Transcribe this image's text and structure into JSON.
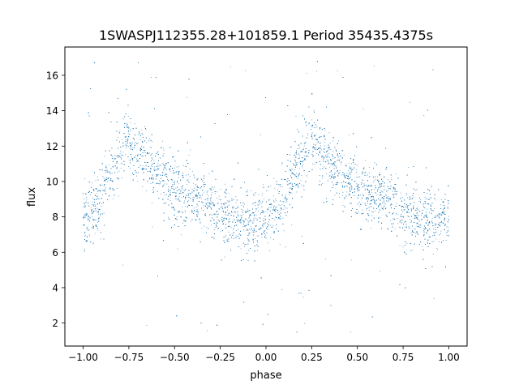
{
  "chart_data": {
    "type": "scatter",
    "title": "1SWASPJ112355.28+101859.1 Period 35435.4375s",
    "xlabel": "phase",
    "ylabel": "flux",
    "xlim": [
      -1.1,
      1.1
    ],
    "ylim": [
      0.7,
      17.6
    ],
    "xticks": [
      -1.0,
      -0.75,
      -0.5,
      -0.25,
      0.0,
      0.25,
      0.5,
      0.75,
      1.0
    ],
    "xtick_labels": [
      "−1.00",
      "−0.75",
      "−0.50",
      "−0.25",
      "0.00",
      "0.25",
      "0.50",
      "0.75",
      "1.00"
    ],
    "yticks": [
      2,
      4,
      6,
      8,
      10,
      12,
      14,
      16
    ],
    "ytick_labels": [
      "2",
      "4",
      "6",
      "8",
      "10",
      "12",
      "14",
      "16"
    ],
    "grid": false,
    "point_color": "#1f77b4",
    "series": [
      {
        "phase_profile": [
          [
            0.0,
            7.8
          ],
          [
            0.05,
            8.2
          ],
          [
            0.1,
            9.0
          ],
          [
            0.15,
            10.2
          ],
          [
            0.2,
            11.4
          ],
          [
            0.24,
            12.3
          ],
          [
            0.3,
            11.4
          ],
          [
            0.35,
            10.8
          ],
          [
            0.4,
            10.3
          ],
          [
            0.45,
            9.9
          ],
          [
            0.5,
            9.6
          ],
          [
            0.55,
            9.3
          ],
          [
            0.6,
            9.0
          ],
          [
            0.65,
            8.8
          ],
          [
            0.7,
            8.6
          ],
          [
            0.75,
            8.3
          ],
          [
            0.8,
            8.0
          ],
          [
            0.85,
            7.8
          ],
          [
            0.9,
            7.6
          ],
          [
            0.95,
            7.6
          ],
          [
            1.0,
            7.8
          ]
        ],
        "scatter_sigma": 0.85,
        "outlier_range": [
          1.3,
          16.9
        ]
      }
    ]
  }
}
